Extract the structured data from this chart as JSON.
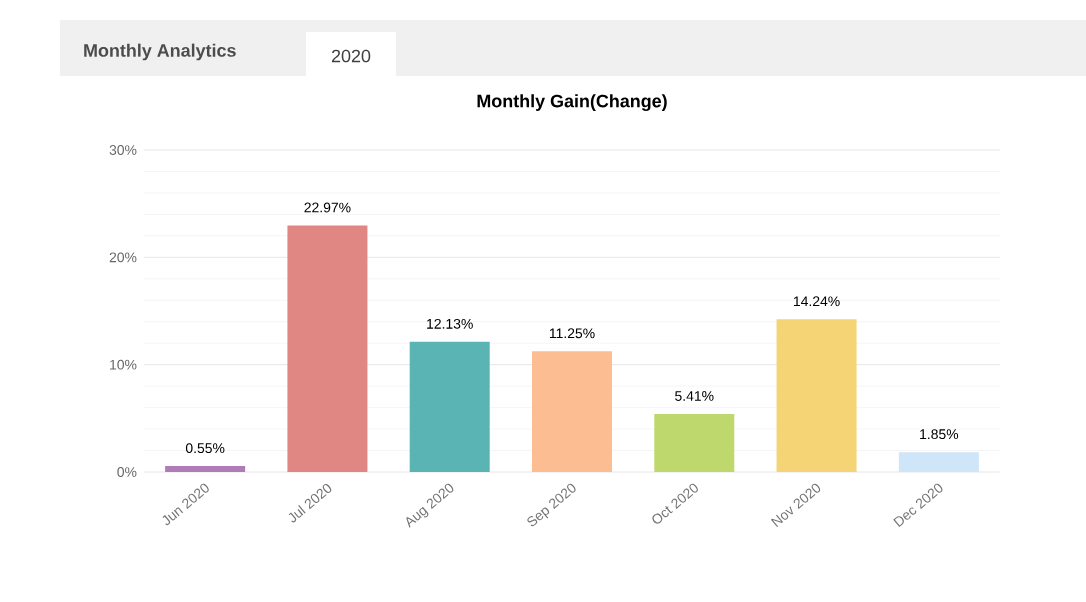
{
  "chart_data": {
    "type": "bar",
    "title": "Monthly Gain(Change)",
    "annotations": [
      "Monthly Analytics",
      "2020"
    ],
    "categories": [
      "Jun 2020",
      "Jul 2020",
      "Aug 2020",
      "Sep 2020",
      "Oct 2020",
      "Nov 2020",
      "Dec 2020"
    ],
    "values": [
      0.55,
      22.97,
      12.13,
      11.25,
      5.41,
      14.24,
      1.85
    ],
    "value_labels": [
      "0.55%",
      "22.97%",
      "12.13%",
      "11.25%",
      "5.41%",
      "14.24%",
      "1.85%"
    ],
    "colors": [
      "#b07cb8",
      "#e08683",
      "#5bb4b4",
      "#fdbd93",
      "#bed86d",
      "#f4d474",
      "#cfe5f8"
    ],
    "ylim": [
      0,
      30
    ],
    "yticks": [
      {
        "value": 0,
        "label": "0%"
      },
      {
        "value": 10,
        "label": "10%"
      },
      {
        "value": 20,
        "label": "20%"
      },
      {
        "value": 30,
        "label": "30%"
      }
    ],
    "grid": "y"
  }
}
